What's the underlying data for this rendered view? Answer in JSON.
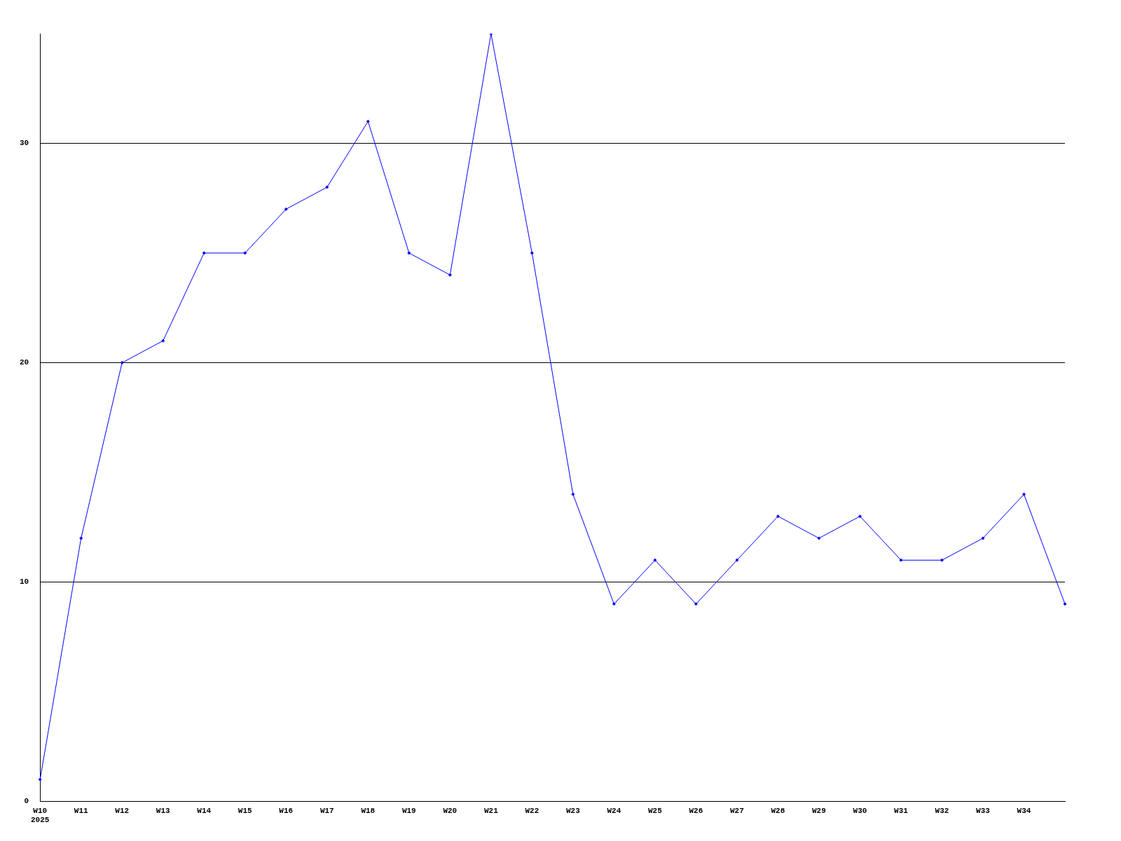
{
  "chart_data": {
    "type": "line",
    "categories": [
      "W10\n2025",
      "W11",
      "W12",
      "W13",
      "W14",
      "W15",
      "W16",
      "W17",
      "W18",
      "W19",
      "W20",
      "W21",
      "W22",
      "W23",
      "W24",
      "W25",
      "W26",
      "W27",
      "W28",
      "W29",
      "W30",
      "W31",
      "W32",
      "W33",
      "W34",
      null
    ],
    "series": [
      {
        "color": "#0000ff",
        "values": [
          1,
          12,
          20,
          21,
          25,
          25,
          27,
          28,
          31,
          25,
          24,
          35,
          25,
          14,
          9,
          11,
          9,
          11,
          13,
          12,
          13,
          11,
          11,
          12,
          14,
          9
        ]
      }
    ],
    "ylim": [
      0,
      35
    ],
    "yticks": [
      0,
      10,
      20,
      30
    ],
    "grid": "y",
    "legend": false,
    "marker": "diamond",
    "line_style": "solid"
  }
}
